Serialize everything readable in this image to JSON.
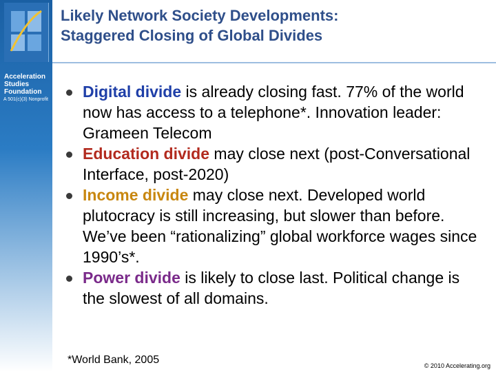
{
  "title": {
    "line1": "Likely Network Society Developments:",
    "line2": "Staggered Closing of Global Divides"
  },
  "sidebar": {
    "org_name": "Acceleration Studies Foundation",
    "tagline": "A 501(c)(3) Nonprofit"
  },
  "bullets": [
    {
      "keyword": "Digital divide",
      "keyword_color": "#1f3fa8",
      "rest": " is already closing fast. 77% of the world now has access to a telephone*. Innovation leader: Grameen Telecom"
    },
    {
      "keyword": "Education divide",
      "keyword_color": "#b22a1e",
      "rest": " may close next (post-Conversational Interface, post-2020)"
    },
    {
      "keyword": "Income divide",
      "keyword_color": "#c88710",
      "rest": " may close next. Developed world plutocracy is still increasing, but slower than before. We’ve been “rationalizing” global workforce wages since 1990’s*."
    },
    {
      "keyword": "Power divide",
      "keyword_color": "#7a2a8a",
      "rest": " is likely to close last. Political change is the slowest of all domains."
    }
  ],
  "footnote": "*World Bank, 2005",
  "copyright": "© 2010 Accelerating.org"
}
